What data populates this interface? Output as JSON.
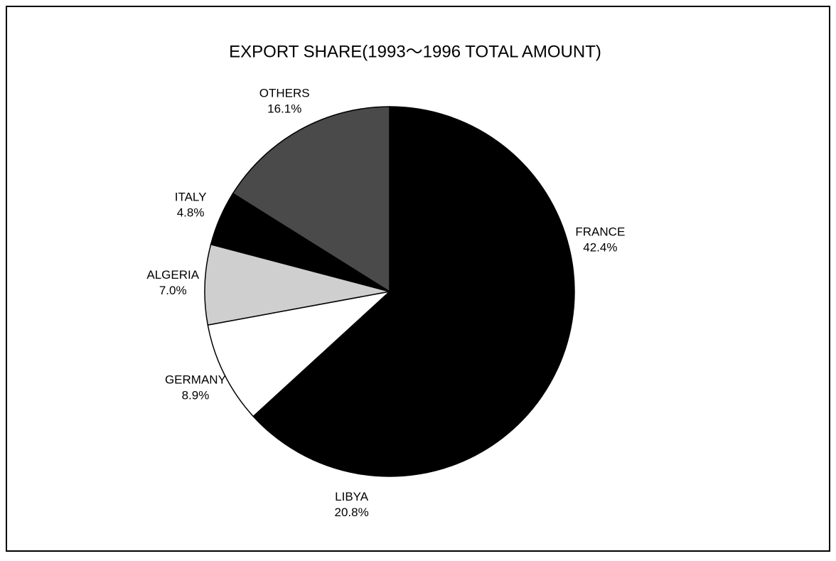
{
  "chart_data": {
    "type": "pie",
    "title": "EXPORT SHARE(1993～1996 TOTAL AMOUNT)",
    "labels": [
      "FRANCE",
      "LIBYA",
      "GERMANY",
      "ALGERIA",
      "ITALY",
      "OTHERS"
    ],
    "values": [
      42.4,
      20.8,
      8.9,
      7.0,
      4.8,
      16.1
    ],
    "value_labels": [
      "42.4%",
      "20.8%",
      "8.9%",
      "7.0%",
      "4.8%",
      "16.1%"
    ],
    "colors": [
      "#000000",
      "#000000",
      "#ffffff",
      "#cfcfcf",
      "#000000",
      "#4a4a4a"
    ]
  }
}
